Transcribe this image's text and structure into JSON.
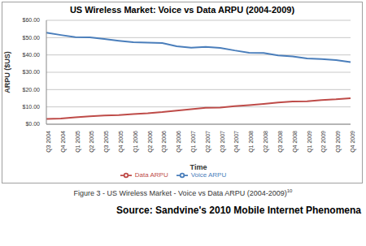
{
  "chart_data": {
    "type": "line",
    "title": "US Wireless Market: Voice vs Data ARPU (2004-2009)",
    "x_label": "Time",
    "y_label": "ARPU ($US)",
    "categories": [
      "Q3 2004",
      "Q4 2004",
      "Q1 2005",
      "Q2 2005",
      "Q3 2005",
      "Q4 2005",
      "Q1 2006",
      "Q2 2006",
      "Q3 2006",
      "Q4 2006",
      "Q1 2007",
      "Q2 2007",
      "Q3 2007",
      "Q4 2007",
      "Q1 2008",
      "Q2 2008",
      "Q3 2008",
      "Q4 2008",
      "Q1 2009",
      "Q2 2009",
      "Q3 2009",
      "Q4 2009"
    ],
    "series": [
      {
        "name": "Voice ARPU",
        "color": "#4a7ebb",
        "values": [
          52.8,
          51.5,
          50.3,
          50.2,
          49.2,
          48.2,
          47.3,
          47.1,
          46.9,
          45.0,
          44.2,
          44.6,
          44.1,
          42.6,
          41.3,
          41.1,
          39.7,
          39.1,
          38.0,
          37.6,
          37.0,
          35.9
        ]
      },
      {
        "name": "Data ARPU",
        "color": "#be4b48",
        "values": [
          3.0,
          3.3,
          4.0,
          4.6,
          5.0,
          5.3,
          5.9,
          6.3,
          7.0,
          7.9,
          8.7,
          9.5,
          9.6,
          10.4,
          11.0,
          11.7,
          12.5,
          13.1,
          13.3,
          14.0,
          14.4,
          15.0
        ]
      }
    ],
    "ylim": [
      0,
      60
    ],
    "yticks": [
      {
        "value": 0,
        "label": "$0.00"
      },
      {
        "value": 10,
        "label": "$10.00"
      },
      {
        "value": 20,
        "label": "$20.00"
      },
      {
        "value": 30,
        "label": "$30.00"
      },
      {
        "value": 40,
        "label": "$40.00"
      },
      {
        "value": 50,
        "label": "$50.00"
      },
      {
        "value": 60,
        "label": "$60.00"
      }
    ],
    "grid": true,
    "legend": "bottom"
  },
  "caption": "Figure 3 - US Wireless Market - Voice vs Data ARPU (2004-2009)",
  "caption_note": "10",
  "source": "Source: Sandvine's 2010 Mobile Internet Phenomena"
}
